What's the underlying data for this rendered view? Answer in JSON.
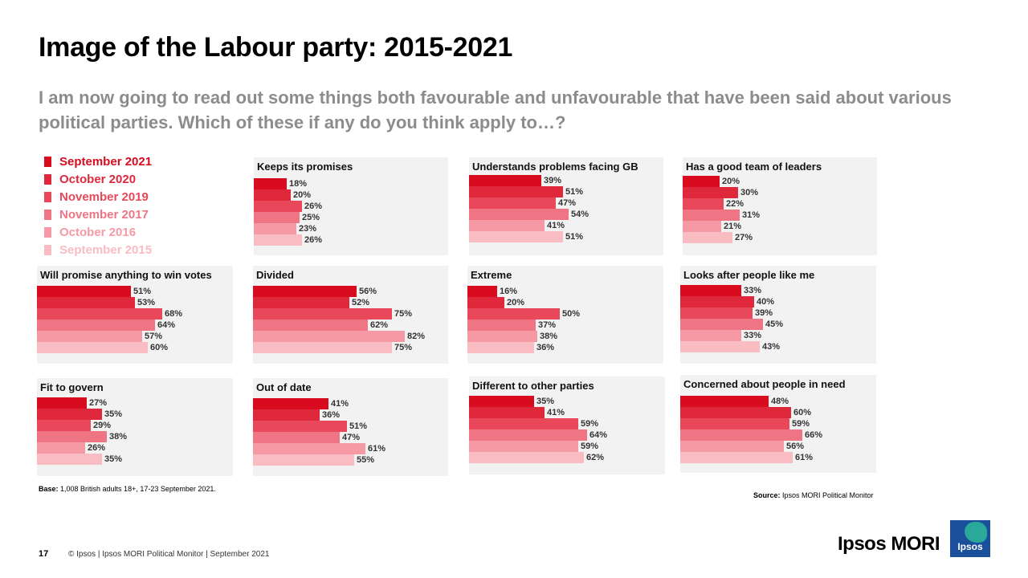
{
  "title": "Image of the Labour party: 2015-2021",
  "subtitle": "I am now going to read out some things both favourable and unfavourable that have been said about various political parties. Which of these if any do you think apply to…?",
  "legend": [
    {
      "label": "September 2021",
      "color": "#d90b1f"
    },
    {
      "label": "October 2020",
      "color": "#e0283c"
    },
    {
      "label": "November 2019",
      "color": "#e8485a"
    },
    {
      "label": "November 2017",
      "color": "#ef7584"
    },
    {
      "label": "October 2016",
      "color": "#f59aa5"
    },
    {
      "label": "September 2015",
      "color": "#fabcc3"
    }
  ],
  "chart_data": {
    "type": "bar",
    "orientation": "horizontal",
    "series_names": [
      "September 2021",
      "October 2020",
      "November 2019",
      "November 2017",
      "October 2016",
      "September 2015"
    ],
    "unit": "%",
    "panels": [
      {
        "title": "Keeps its promises",
        "values": [
          18,
          20,
          26,
          25,
          23,
          26
        ]
      },
      {
        "title": "Understands problems facing GB",
        "values": [
          39,
          51,
          47,
          54,
          41,
          51
        ]
      },
      {
        "title": "Has a good team of leaders",
        "values": [
          20,
          30,
          22,
          31,
          21,
          27
        ]
      },
      {
        "title": "Will promise anything to win votes",
        "values": [
          51,
          53,
          68,
          64,
          57,
          60
        ]
      },
      {
        "title": "Divided",
        "values": [
          56,
          52,
          75,
          62,
          82,
          75
        ]
      },
      {
        "title": "Extreme",
        "values": [
          16,
          20,
          50,
          37,
          38,
          36
        ]
      },
      {
        "title": "Looks after people like me",
        "values": [
          33,
          40,
          39,
          45,
          33,
          43
        ]
      },
      {
        "title": "Fit to govern",
        "values": [
          27,
          35,
          29,
          38,
          26,
          35
        ]
      },
      {
        "title": "Out of date",
        "values": [
          41,
          36,
          51,
          47,
          61,
          55
        ]
      },
      {
        "title": "Different to other parties",
        "values": [
          35,
          41,
          59,
          64,
          59,
          62
        ]
      },
      {
        "title": "Concerned about people in need",
        "values": [
          48,
          60,
          59,
          66,
          56,
          61
        ]
      }
    ]
  },
  "footer": {
    "base_bold": "Base:",
    "base_text": " 1,008 British adults 18+, 17-23 September 2021.",
    "source_bold": "Source:",
    "source_text": " Ipsos MORI Political Monitor",
    "page_number": "17",
    "copyright": "© Ipsos | Ipsos MORI Political Monitor | September 2021",
    "brand": "Ipsos MORI",
    "logo_text": "Ipsos"
  }
}
